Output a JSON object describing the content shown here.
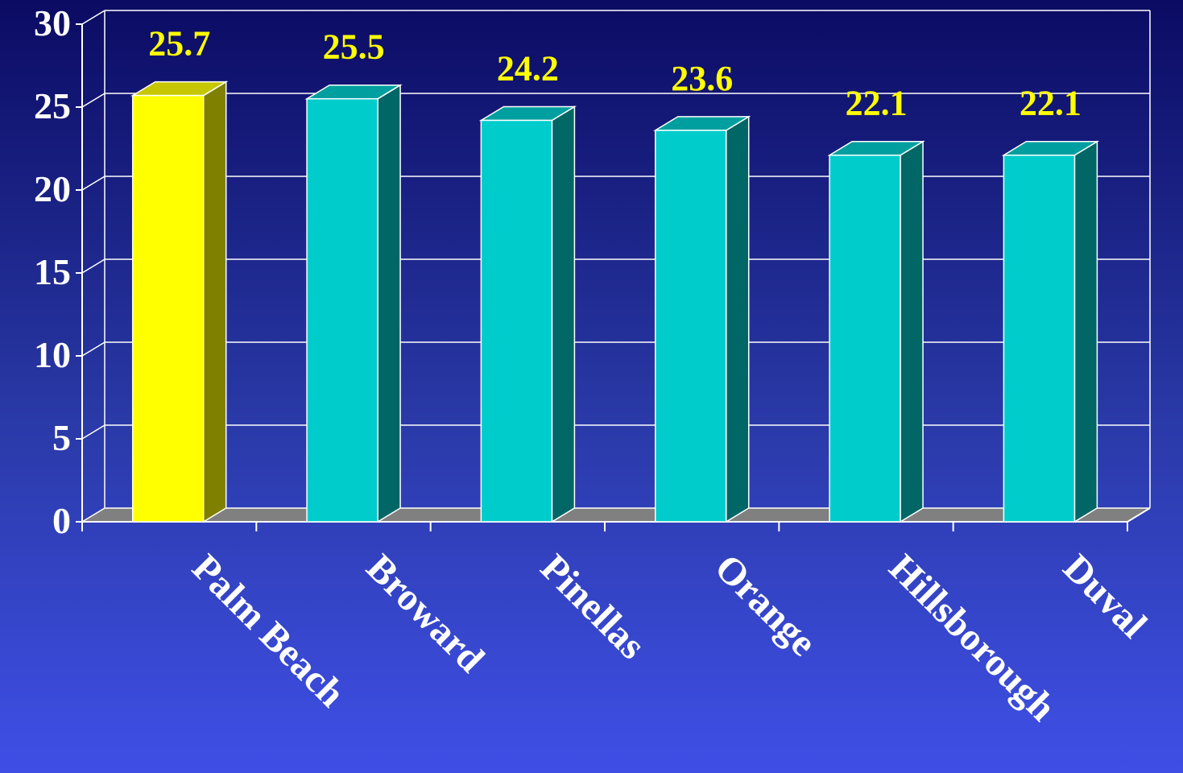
{
  "chart_data": {
    "type": "bar",
    "style": "3d-column",
    "title": "",
    "xlabel": "",
    "ylabel": "",
    "categories": [
      "Palm Beach",
      "Broward",
      "Pinellas",
      "Orange",
      "Hillsborough",
      "Duval"
    ],
    "values": [
      25.7,
      25.5,
      24.2,
      23.6,
      22.1,
      22.1
    ],
    "data_labels": [
      "25.7",
      "25.5",
      "24.2",
      "23.6",
      "22.1",
      "22.1"
    ],
    "ylim": [
      0,
      30
    ],
    "yticks": [
      0,
      5,
      10,
      15,
      20,
      25,
      30
    ],
    "ytick_labels": [
      "0",
      "5",
      "10",
      "15",
      "20",
      "25",
      "30"
    ],
    "grid": true,
    "highlight_index": 0,
    "colors": {
      "highlight": "#ffff00",
      "bar": "#00cccc",
      "label": "#ffff00",
      "axis_text": "#ffffff",
      "grid": "#ffffff",
      "floor": "#808080"
    }
  }
}
